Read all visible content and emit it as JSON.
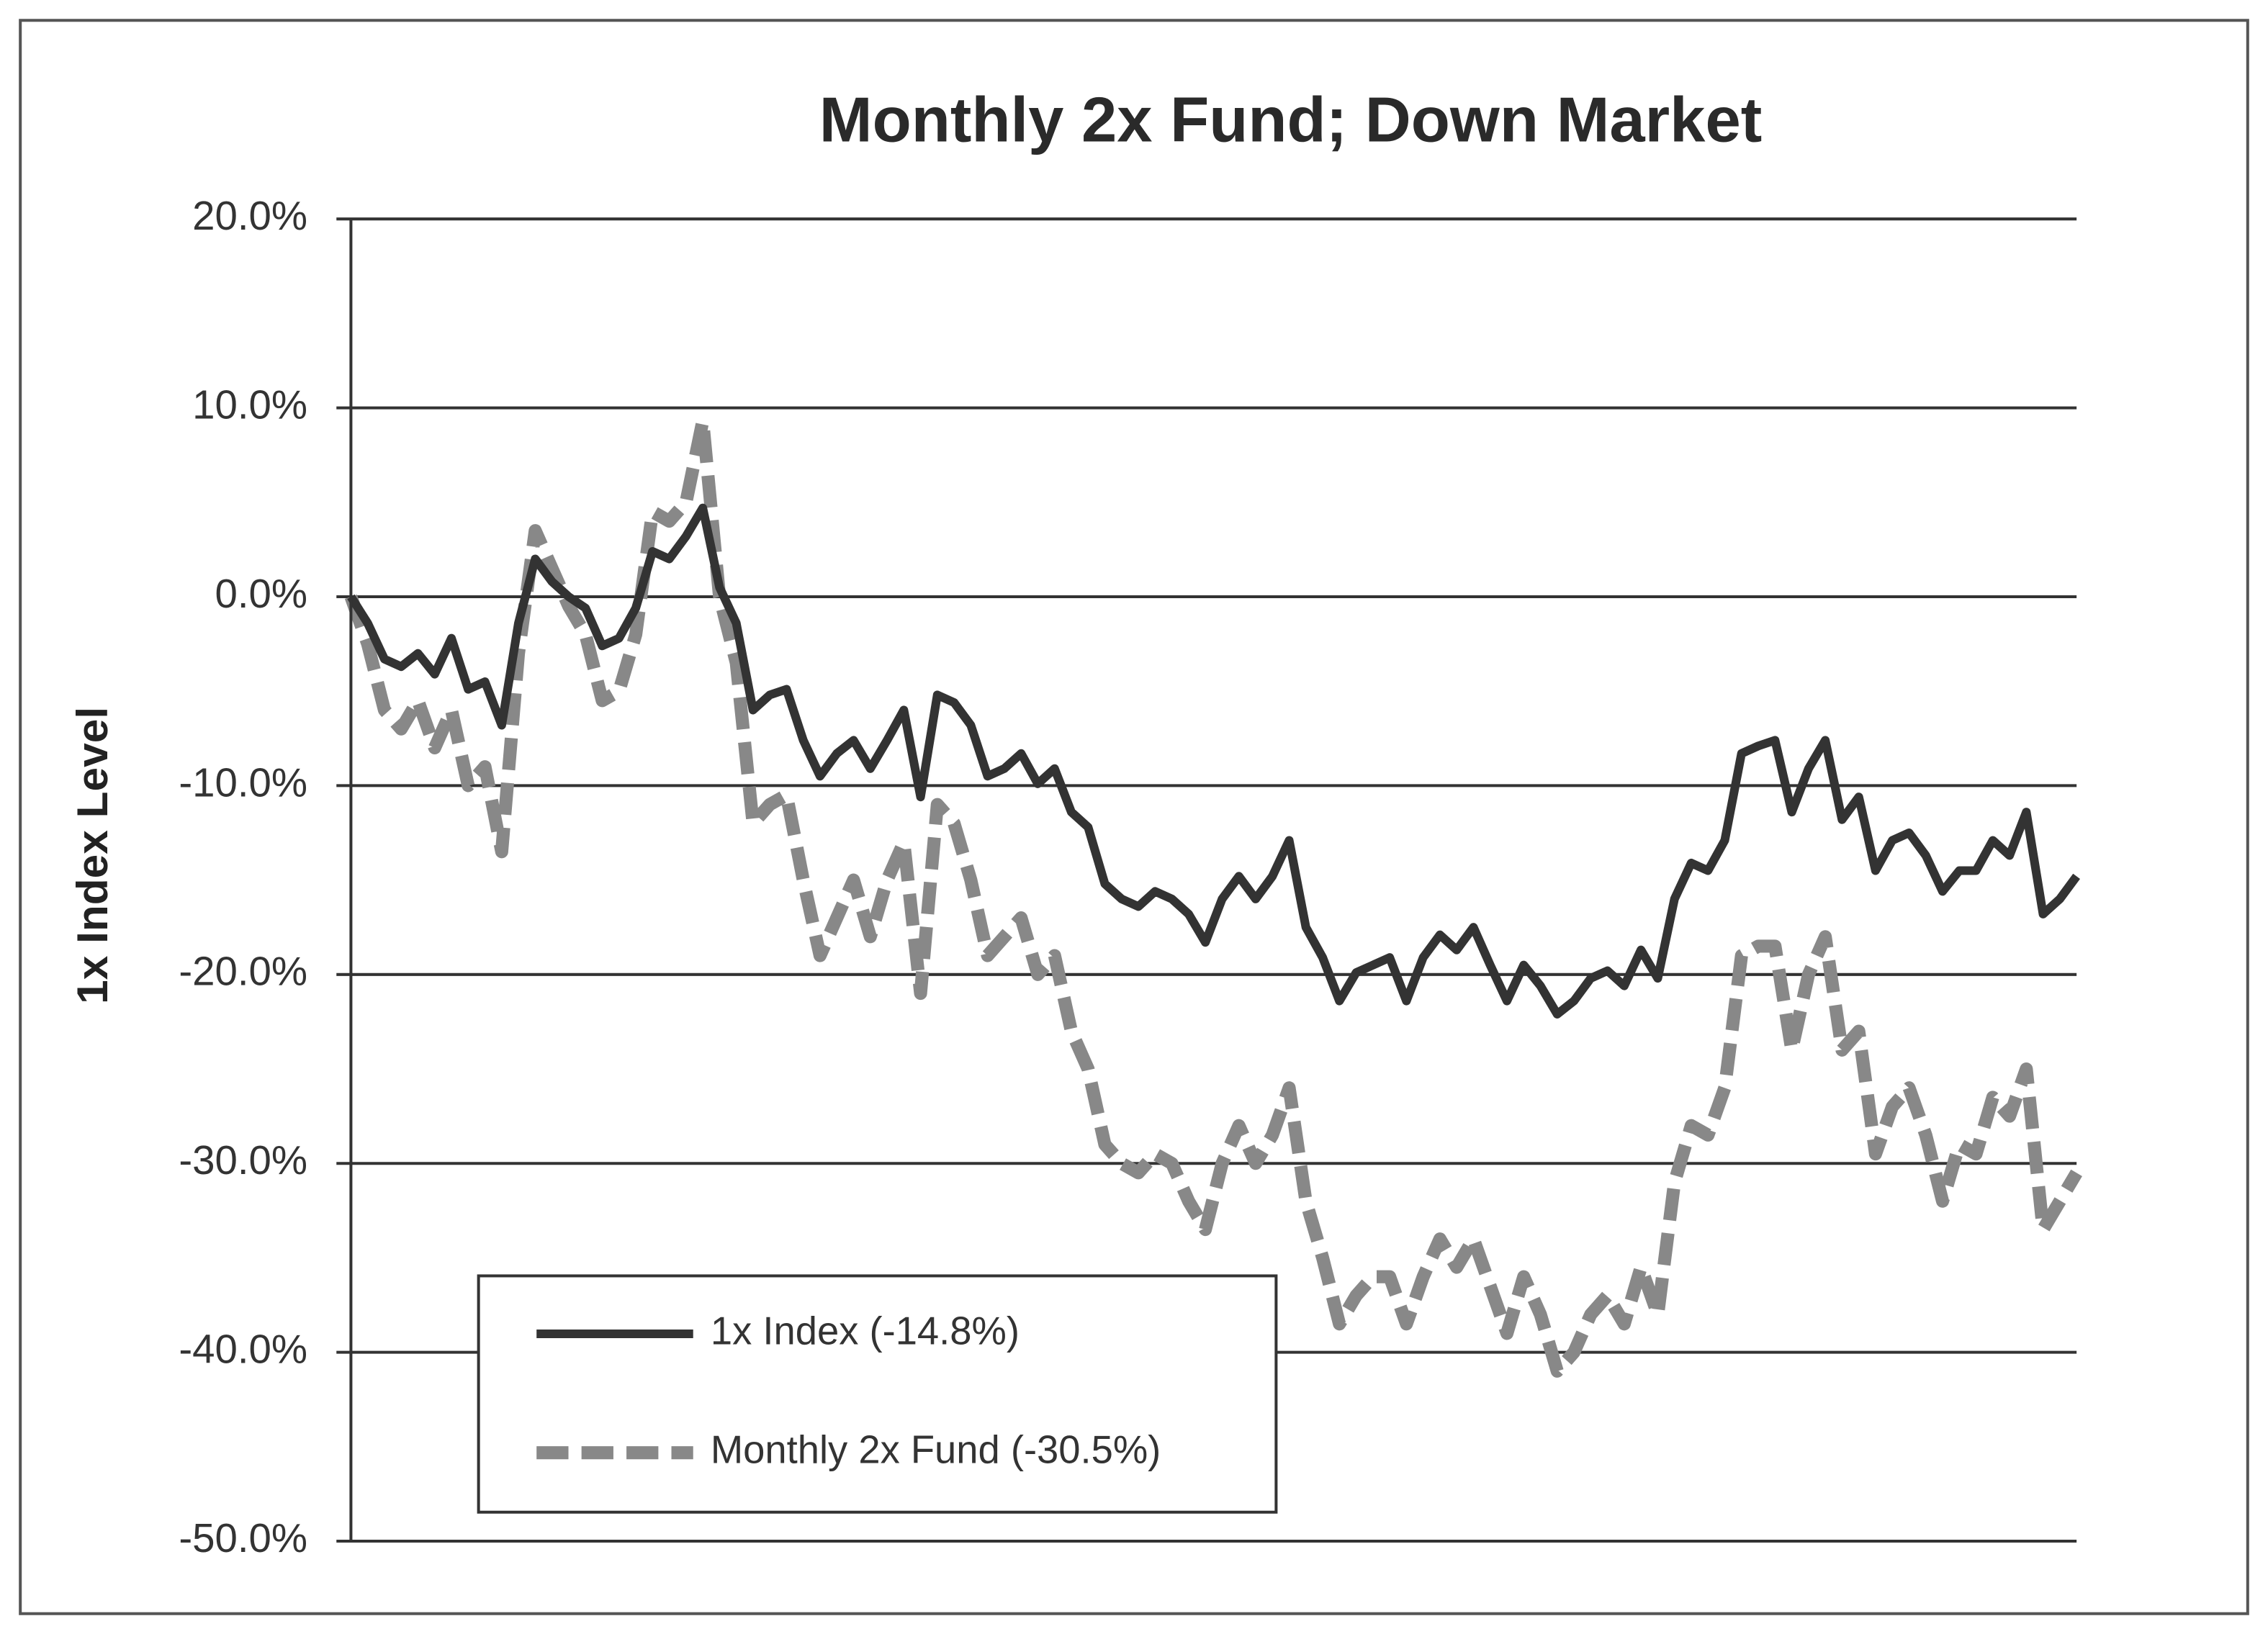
{
  "chart_data": {
    "type": "line",
    "title": "Monthly 2x Fund; Down Market",
    "y_label": "1x Index Level",
    "ylim": [
      -50,
      20
    ],
    "yticks": [
      {
        "value": -50,
        "label": "-50.0%"
      },
      {
        "value": -40,
        "label": "-40.0%"
      },
      {
        "value": -30,
        "label": "-30.0%"
      },
      {
        "value": -20,
        "label": "-20.0%"
      },
      {
        "value": -10,
        "label": "-10.0%"
      },
      {
        "value": 0,
        "label": "0.0%"
      },
      {
        "value": 10,
        "label": "10.0%"
      },
      {
        "value": 20,
        "label": "20.0%"
      }
    ],
    "grid": true,
    "legend": "lower left",
    "categories": [
      null,
      null,
      null,
      null,
      null,
      null,
      null,
      null,
      null,
      null,
      null,
      null,
      null,
      null,
      null,
      null,
      null,
      null,
      null,
      null,
      null,
      null,
      null,
      null,
      null,
      null,
      null,
      null,
      null,
      null,
      null,
      null,
      null,
      null,
      null,
      null,
      null,
      null,
      null,
      null,
      null,
      null,
      null,
      null,
      null,
      null,
      null,
      null,
      null,
      null,
      null,
      null,
      null,
      null,
      null,
      null,
      null,
      null,
      null,
      null,
      null,
      null,
      null,
      null,
      null,
      null,
      null,
      null,
      null,
      null,
      null,
      null,
      null,
      null,
      null,
      null,
      null,
      null,
      null,
      null,
      null,
      null,
      null,
      null,
      null,
      null,
      null,
      null,
      null,
      null,
      null,
      null,
      null,
      null,
      null,
      null,
      null,
      null,
      null,
      null,
      null,
      null,
      null,
      null
    ],
    "series": [
      {
        "name": "1x Index (-14.8%)",
        "color": "#333333",
        "dashed": false,
        "values": [
          0,
          -1.4,
          -3.3,
          -3.7,
          -3,
          -4.1,
          -2.2,
          -4.9,
          -4.5,
          -6.8,
          -1.4,
          2,
          0.8,
          0,
          -0.6,
          -2.6,
          -2.2,
          -0.6,
          2.4,
          2,
          3.2,
          4.7,
          0.5,
          -1.4,
          -6,
          -5.2,
          -4.9,
          -7.6,
          -9.5,
          -8.3,
          -7.6,
          -9.1,
          -7.6,
          -6,
          -10.6,
          -5.2,
          -5.6,
          -6.8,
          -9.5,
          -9.1,
          -8.3,
          -9.9,
          -9.1,
          -11.4,
          -12.2,
          -15.2,
          -16,
          -16.4,
          -15.6,
          -16,
          -16.8,
          -18.3,
          -16,
          -14.8,
          -16,
          -14.8,
          -12.9,
          -17.5,
          -19.1,
          -21.4,
          -19.9,
          -19.5,
          -19.1,
          -21.4,
          -19.1,
          -17.9,
          -18.7,
          -17.5,
          -19.5,
          -21.4,
          -19.5,
          -20.6,
          -22.1,
          -21.4,
          -20.2,
          -19.8,
          -20.6,
          -18.7,
          -20.2,
          -16,
          -14.1,
          -14.5,
          -12.9,
          -8.3,
          -7.9,
          -7.6,
          -11.4,
          -9.1,
          -7.6,
          -11.8,
          -10.6,
          -14.5,
          -12.9,
          -12.5,
          -13.7,
          -15.6,
          -14.5,
          -14.5,
          -12.9,
          -13.7,
          -11.4,
          -16.8,
          -16,
          -14.8
        ]
      },
      {
        "name": "Monthly 2x Fund (-30.5%)",
        "color": "#888888",
        "dashed": true,
        "values": [
          0,
          -2.5,
          -6,
          -7,
          -5.5,
          -8,
          -6,
          -10,
          -9,
          -13.5,
          -3,
          3.5,
          1.5,
          -0.5,
          -2,
          -5.5,
          -5,
          -2,
          4.5,
          4,
          5,
          9.3,
          0,
          -3.5,
          -12,
          -11,
          -10.5,
          -15,
          -19,
          -17,
          -15,
          -18,
          -15,
          -13,
          -21,
          -11,
          -12,
          -15,
          -19,
          -18,
          -17,
          -20,
          -19,
          -23,
          -25,
          -29,
          -30,
          -30.5,
          -29.5,
          -30,
          -32,
          -33.5,
          -30,
          -28,
          -30,
          -28.5,
          -26,
          -32,
          -35,
          -38.5,
          -37,
          -36,
          -36,
          -38.5,
          -36,
          -34,
          -35.5,
          -34,
          -36.5,
          -39,
          -36,
          -38,
          -41,
          -40,
          -38,
          -37,
          -38.5,
          -35.5,
          -38,
          -31,
          -28,
          -28.5,
          -26,
          -19,
          -18.5,
          -18.5,
          -24,
          -20,
          -18,
          -24,
          -23,
          -29.5,
          -27,
          -26,
          -28.5,
          -32,
          -29,
          -29.5,
          -26.5,
          -27.5,
          -25,
          -33.5,
          -32,
          -30.5
        ]
      }
    ]
  }
}
